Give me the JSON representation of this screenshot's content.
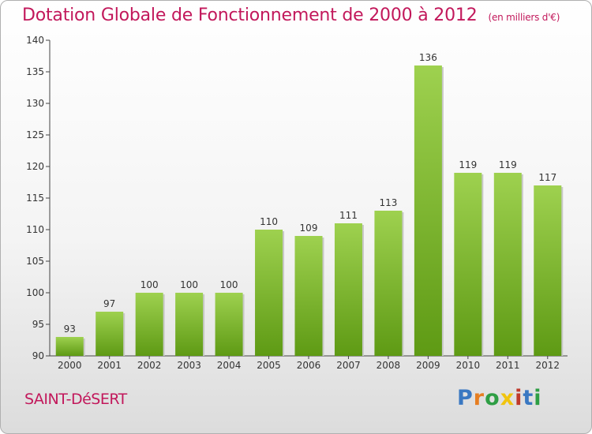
{
  "header": {
    "title": "Dotation Globale de Fonctionnement de 2000 à 2012",
    "unit": "(en milliers d'€)"
  },
  "footer": {
    "commune": "SAINT-DéSERT",
    "logo_letters": [
      "P",
      "r",
      "o",
      "x",
      "i",
      "t",
      "i"
    ]
  },
  "colors": {
    "bar_light": "#9ed14f",
    "bar_dark": "#5e9a14",
    "accent": "#c2185b"
  },
  "chart_data": {
    "type": "bar",
    "title": "Dotation Globale de Fonctionnement de 2000 à 2012",
    "subtitle": "(en milliers d'€)",
    "xlabel": "",
    "ylabel": "",
    "categories": [
      "2000",
      "2001",
      "2002",
      "2003",
      "2004",
      "2005",
      "2006",
      "2007",
      "2008",
      "2009",
      "2010",
      "2011",
      "2012"
    ],
    "values": [
      93,
      97,
      100,
      100,
      100,
      110,
      109,
      111,
      113,
      136,
      119,
      119,
      117
    ],
    "ylim": [
      90,
      140
    ],
    "yticks": [
      90,
      95,
      100,
      105,
      110,
      115,
      120,
      125,
      130,
      135,
      140
    ],
    "grid": false,
    "legend": "none"
  }
}
